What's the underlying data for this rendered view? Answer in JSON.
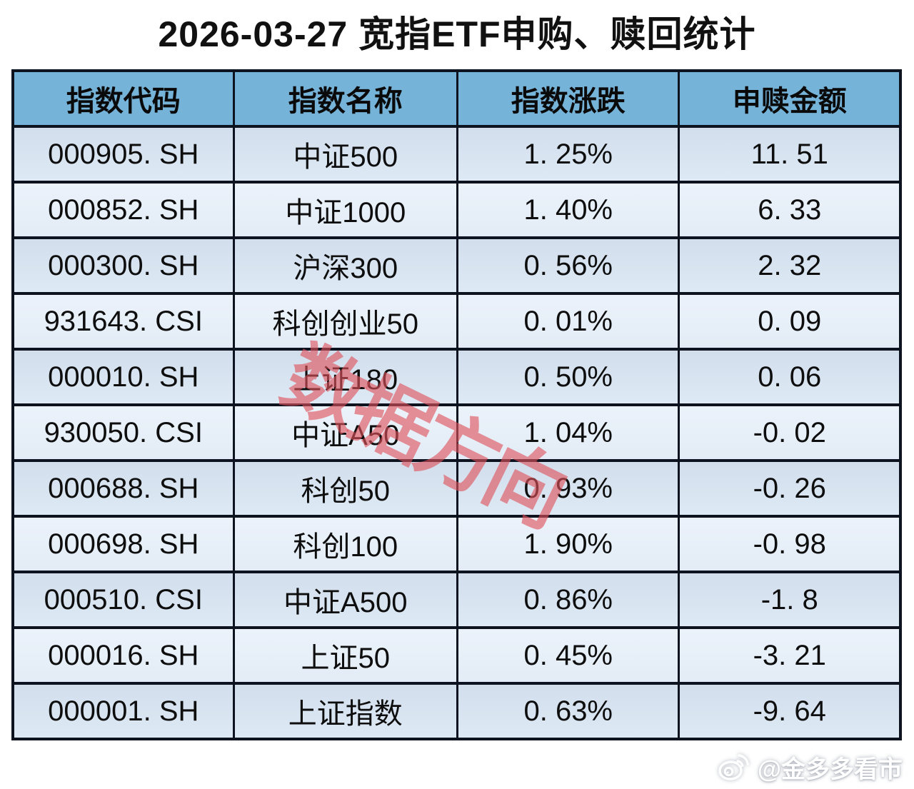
{
  "title": "2026-03-27 宽指ETF申购、赎回统计",
  "table": {
    "columns": [
      "指数代码",
      "指数名称",
      "指数涨跌",
      "申赎金额"
    ],
    "rows": [
      {
        "code": "000905. SH",
        "name": "中证500",
        "change": "1. 25%",
        "amount": "11. 51"
      },
      {
        "code": "000852. SH",
        "name": "中证1000",
        "change": "1. 40%",
        "amount": "6. 33"
      },
      {
        "code": "000300. SH",
        "name": "沪深300",
        "change": "0. 56%",
        "amount": "2. 32"
      },
      {
        "code": "931643. CSI",
        "name": "科创创业50",
        "change": "0. 01%",
        "amount": "0. 09"
      },
      {
        "code": "000010. SH",
        "name": "上证180",
        "change": "0. 50%",
        "amount": "0. 06"
      },
      {
        "code": "930050. CSI",
        "name": "中证A50",
        "change": "1. 04%",
        "amount": "-0. 02"
      },
      {
        "code": "000688. SH",
        "name": "科创50",
        "change": "0. 93%",
        "amount": "-0. 26"
      },
      {
        "code": "000698. SH",
        "name": "科创100",
        "change": "1. 90%",
        "amount": "-0. 98"
      },
      {
        "code": "000510. CSI",
        "name": "中证A500",
        "change": "0. 86%",
        "amount": "-1. 8"
      },
      {
        "code": "000016. SH",
        "name": "上证50",
        "change": "0. 45%",
        "amount": "-3. 21"
      },
      {
        "code": "000001. SH",
        "name": "上证指数",
        "change": "0. 63%",
        "amount": "-9. 64"
      }
    ]
  },
  "watermarks": {
    "diagonal": "数据方向",
    "credit": "@金多多看市",
    "credit_icon": "weibo-icon"
  },
  "colors": {
    "header_bg": "#76b3d9",
    "row_odd_top": "#d2deec",
    "row_odd_bottom": "#dde9f4",
    "row_even_top": "#ebf2fa",
    "row_even_bottom": "#e3ecf6",
    "border": "#0d1420",
    "title_color": "#111111",
    "watermark_red_rgba": "rgba(223,80,90,0.62)",
    "credit_color": "#ffffff"
  },
  "chart_data": {
    "type": "table",
    "title": "2026-03-27 宽指ETF申购、赎回统计",
    "columns": [
      "指数代码",
      "指数名称",
      "指数涨跌",
      "申赎金额"
    ],
    "rows": [
      [
        "000905.SH",
        "中证500",
        "1.25%",
        11.51
      ],
      [
        "000852.SH",
        "中证1000",
        "1.40%",
        6.33
      ],
      [
        "000300.SH",
        "沪深300",
        "0.56%",
        2.32
      ],
      [
        "931643.CSI",
        "科创创业50",
        "0.01%",
        0.09
      ],
      [
        "000010.SH",
        "上证180",
        "0.50%",
        0.06
      ],
      [
        "930050.CSI",
        "中证A50",
        "1.04%",
        -0.02
      ],
      [
        "000688.SH",
        "科创50",
        "0.93%",
        -0.26
      ],
      [
        "000698.SH",
        "科创100",
        "1.90%",
        -0.98
      ],
      [
        "000510.CSI",
        "中证A500",
        "0.86%",
        -1.8
      ],
      [
        "000016.SH",
        "上证50",
        "0.45%",
        -3.21
      ],
      [
        "000001.SH",
        "上证指数",
        "0.63%",
        -9.64
      ]
    ]
  }
}
